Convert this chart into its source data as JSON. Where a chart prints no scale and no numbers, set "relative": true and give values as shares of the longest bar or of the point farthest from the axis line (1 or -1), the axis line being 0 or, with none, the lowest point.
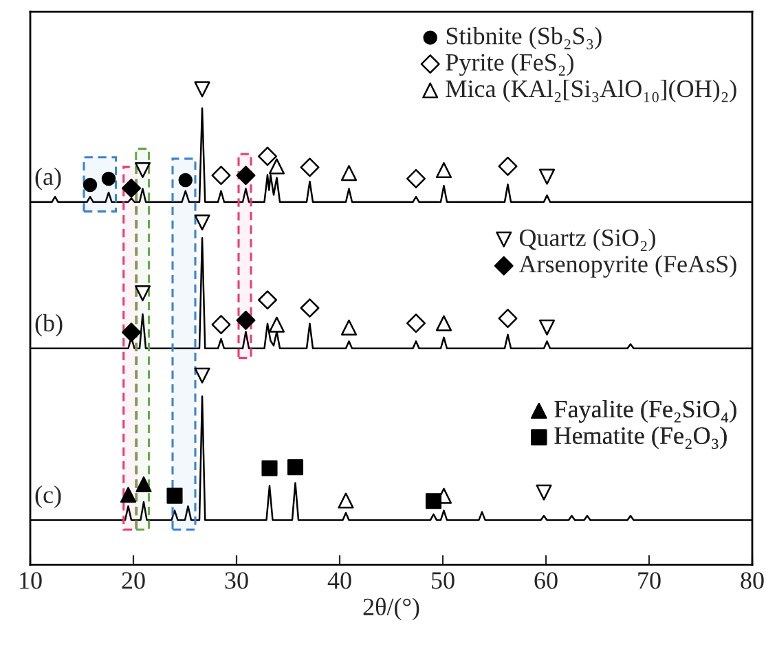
{
  "chart_data": {
    "type": "line",
    "relative": true,
    "xlabel": "2θ/(°)",
    "xlim": [
      10,
      80
    ],
    "xticks": [
      10,
      20,
      30,
      40,
      50,
      60,
      70,
      80
    ],
    "grid": false,
    "legend": "right",
    "tick_labels": "x",
    "series": [
      {
        "name": "(a)",
        "color": "#000000",
        "marker": "none",
        "x": [
          10,
          12.1,
          12.4,
          12.7,
          15.5,
          15.8,
          16.1,
          17.3,
          17.6,
          17.9,
          19.5,
          19.8,
          20.1,
          20.6,
          20.9,
          21.2,
          24.7,
          25.05,
          25.4,
          26.4,
          26.67,
          26.95,
          28.2,
          28.5,
          28.8,
          30.6,
          30.9,
          31.2,
          32.7,
          33.0,
          33.15,
          33.3,
          33.6,
          33.9,
          34.2,
          36.8,
          37.1,
          37.4,
          40.6,
          40.9,
          41.2,
          47.1,
          47.4,
          47.7,
          49.8,
          50.1,
          50.4,
          56.0,
          56.3,
          56.6,
          59.8,
          60.1,
          60.4,
          80
        ],
        "values": [
          0.763,
          0.763,
          0.774,
          0.763,
          0.763,
          0.774,
          0.763,
          0.763,
          0.783,
          0.763,
          0.763,
          0.771,
          0.763,
          0.763,
          0.791,
          0.763,
          0.763,
          0.786,
          0.763,
          0.763,
          0.96,
          0.763,
          0.763,
          0.786,
          0.763,
          0.763,
          0.791,
          0.763,
          0.763,
          0.82,
          0.788,
          0.82,
          0.778,
          0.814,
          0.763,
          0.763,
          0.806,
          0.763,
          0.763,
          0.791,
          0.763,
          0.763,
          0.774,
          0.763,
          0.763,
          0.797,
          0.763,
          0.763,
          0.8,
          0.763,
          0.763,
          0.777,
          0.763,
          0.763
        ]
      },
      {
        "name": "(b)",
        "color": "#000000",
        "marker": "none",
        "x": [
          10,
          19.5,
          19.8,
          20.1,
          20.6,
          20.9,
          21.2,
          26.4,
          26.67,
          26.95,
          28.2,
          28.5,
          28.8,
          30.6,
          30.9,
          31.2,
          32.7,
          33.0,
          33.3,
          33.6,
          33.9,
          34.2,
          36.8,
          37.1,
          37.4,
          40.6,
          40.9,
          41.2,
          47.1,
          47.4,
          47.7,
          49.8,
          50.1,
          50.4,
          56.0,
          56.3,
          56.6,
          59.8,
          60.1,
          60.4,
          67.9,
          68.2,
          68.5,
          80
        ],
        "values": [
          0.455,
          0.455,
          0.478,
          0.455,
          0.455,
          0.527,
          0.455,
          0.455,
          0.687,
          0.455,
          0.455,
          0.475,
          0.455,
          0.455,
          0.49,
          0.455,
          0.455,
          0.507,
          0.471,
          0.461,
          0.49,
          0.455,
          0.455,
          0.507,
          0.455,
          0.455,
          0.47,
          0.455,
          0.455,
          0.47,
          0.455,
          0.455,
          0.478,
          0.455,
          0.455,
          0.484,
          0.455,
          0.455,
          0.47,
          0.455,
          0.455,
          0.464,
          0.455,
          0.455
        ]
      },
      {
        "name": "(c)",
        "color": "#000000",
        "marker": "none",
        "x": [
          10,
          19.2,
          19.5,
          19.8,
          20.7,
          21.0,
          21.3,
          23.7,
          24.0,
          24.3,
          25.0,
          25.3,
          25.6,
          26.4,
          26.67,
          26.95,
          32.9,
          33.2,
          33.5,
          35.4,
          35.7,
          36.0,
          40.3,
          40.6,
          40.9,
          48.8,
          49.1,
          49.4,
          49.8,
          50.1,
          50.4,
          53.5,
          53.8,
          54.1,
          59.5,
          59.8,
          60.1,
          62.2,
          62.5,
          62.8,
          63.7,
          64.0,
          64.3,
          67.9,
          68.2,
          68.5,
          80
        ],
        "values": [
          0.094,
          0.094,
          0.123,
          0.094,
          0.094,
          0.132,
          0.094,
          0.094,
          0.114,
          0.094,
          0.094,
          0.123,
          0.094,
          0.094,
          0.354,
          0.094,
          0.094,
          0.166,
          0.094,
          0.094,
          0.172,
          0.094,
          0.094,
          0.109,
          0.094,
          0.094,
          0.106,
          0.094,
          0.094,
          0.114,
          0.094,
          0.094,
          0.111,
          0.094,
          0.094,
          0.103,
          0.094,
          0.094,
          0.103,
          0.094,
          0.094,
          0.103,
          0.094,
          0.094,
          0.103,
          0.094,
          0.094
        ]
      },
      {
        "type": "scatter",
        "name": "Stibnite (Sb₂S₃)",
        "color": "#000000",
        "marker": "circle",
        "x": [
          15.8,
          17.6,
          25.05
        ],
        "values": [
          0.799,
          0.812,
          0.809
        ]
      },
      {
        "type": "scatter",
        "name": "Pyrite (FeS₂)",
        "color": "#ffffff",
        "marker": "diamond",
        "x": [
          28.5,
          33.0,
          37.1,
          47.4,
          56.3,
          28.5,
          33.0,
          37.1,
          47.4,
          56.3
        ],
        "values": [
          0.819,
          0.859,
          0.836,
          0.812,
          0.838,
          0.505,
          0.557,
          0.54,
          0.508,
          0.518
        ]
      },
      {
        "type": "scatter",
        "name": "Mica (KAl₂[Si₃AlO₁₀](OH)₂)",
        "color": "#ffffff",
        "marker": "triangle",
        "x": [
          33.9,
          40.9,
          50.1,
          33.9,
          40.9,
          50.1,
          40.6,
          50.1
        ],
        "values": [
          0.838,
          0.824,
          0.83,
          0.505,
          0.499,
          0.508,
          0.135,
          0.145
        ]
      },
      {
        "type": "scatter",
        "name": "Quartz (SiO₂)",
        "color": "#ffffff",
        "marker": "triangle_down",
        "x": [
          20.9,
          26.67,
          60.1,
          20.9,
          26.67,
          60.1,
          26.67,
          59.8
        ],
        "values": [
          0.83,
          1.0,
          0.816,
          0.571,
          0.72,
          0.499,
          0.398,
          0.152
        ]
      },
      {
        "type": "scatter",
        "name": "Arsenopyrite (FeAsS)",
        "color": "#000000",
        "marker": "diamond",
        "x": [
          19.8,
          30.9,
          19.8,
          30.9
        ],
        "values": [
          0.792,
          0.819,
          0.489,
          0.514
        ]
      },
      {
        "type": "scatter",
        "name": "Fayalite (Fe₂SiO₄)",
        "color": "#000000",
        "marker": "triangle",
        "x": [
          19.5,
          21.0
        ],
        "values": [
          0.147,
          0.169
        ]
      },
      {
        "type": "scatter",
        "name": "Hematite (Fe₂O₃)",
        "color": "#000000",
        "marker": "square",
        "x": [
          24.0,
          33.2,
          35.7,
          49.1
        ],
        "values": [
          0.145,
          0.203,
          0.205,
          0.134
        ]
      }
    ],
    "bands": [
      {
        "axis": "x",
        "from": 15.2,
        "to": 18.3,
        "color": "#3b82d6"
      },
      {
        "axis": "x",
        "from": 23.8,
        "to": 26.0,
        "color": "#3b82d6"
      },
      {
        "axis": "x",
        "from": 19.05,
        "to": 20.3,
        "color": "#ec3b78"
      },
      {
        "axis": "x",
        "from": 20.25,
        "to": 21.5,
        "color": "#6aa84f"
      },
      {
        "axis": "x",
        "from": 30.2,
        "to": 31.4,
        "color": "#ec3b78"
      }
    ]
  }
}
